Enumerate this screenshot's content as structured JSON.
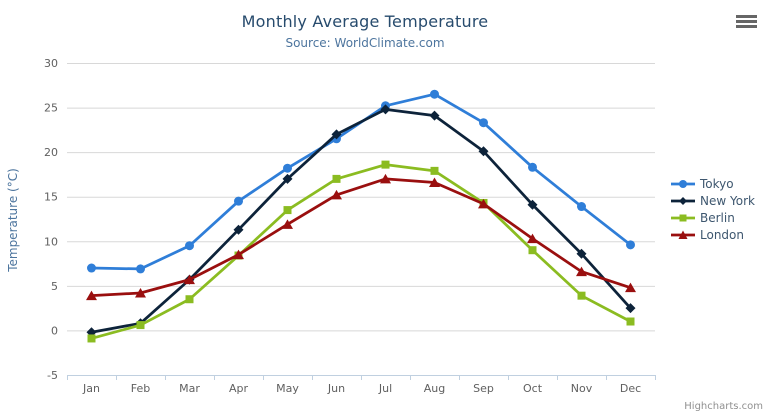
{
  "chart": {
    "title": "Monthly Average Temperature",
    "subtitle": "Source: WorldClimate.com",
    "ylabel": "Temperature (°C)",
    "credits": "Highcharts.com",
    "export_icon": "hamburger-icon"
  },
  "chart_data": {
    "type": "line",
    "title": "Monthly Average Temperature",
    "subtitle": "Source: WorldClimate.com",
    "categories": [
      "Jan",
      "Feb",
      "Mar",
      "Apr",
      "May",
      "Jun",
      "Jul",
      "Aug",
      "Sep",
      "Oct",
      "Nov",
      "Dec"
    ],
    "series": [
      {
        "name": "Tokyo",
        "color": "#2f7ed8",
        "marker": "circle",
        "values": [
          7.0,
          6.9,
          9.5,
          14.5,
          18.2,
          21.5,
          25.2,
          26.5,
          23.3,
          18.3,
          13.9,
          9.6
        ]
      },
      {
        "name": "New York",
        "color": "#0d233a",
        "marker": "diamond",
        "values": [
          -0.2,
          0.8,
          5.7,
          11.3,
          17.0,
          22.0,
          24.8,
          24.1,
          20.1,
          14.1,
          8.6,
          2.5
        ]
      },
      {
        "name": "Berlin",
        "color": "#8bbc21",
        "marker": "square",
        "values": [
          -0.9,
          0.6,
          3.5,
          8.4,
          13.5,
          17.0,
          18.6,
          17.9,
          14.3,
          9.0,
          3.9,
          1.0
        ]
      },
      {
        "name": "London",
        "color": "#9a0f0f",
        "marker": "triangle",
        "values": [
          3.9,
          4.2,
          5.7,
          8.5,
          11.9,
          15.2,
          17.0,
          16.6,
          14.2,
          10.3,
          6.6,
          4.8
        ]
      }
    ],
    "xlabel": "",
    "ylabel": "Temperature (°C)",
    "ylim": [
      -5,
      30
    ],
    "ytick_step": 5,
    "yticks": [
      -5,
      0,
      5,
      10,
      15,
      20,
      25,
      30
    ],
    "grid": true,
    "legend_position": "right"
  },
  "colors": {
    "title": "#274b6d",
    "subtitle": "#4d759e",
    "axis_label": "#606060",
    "axis_title": "#4d759e",
    "grid": "#d8d8d8",
    "axis_line": "#c0d0e0",
    "legend_text": "#3e576f",
    "credits": "#909090",
    "background": "#ffffff"
  }
}
